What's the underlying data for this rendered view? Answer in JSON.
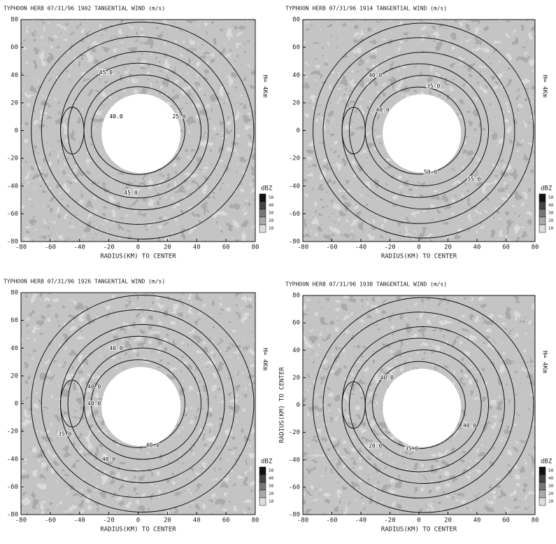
{
  "chart_data": [
    {
      "type": "radar-image",
      "title": "TYPHOON HERB 07/31/96 1902   TANGENTIAL WIND (m/s)",
      "xlabel": "RADIUS(KM) TO CENTER",
      "side_label": "H= 4Km",
      "xlim": [
        -80,
        80
      ],
      "ylim": [
        -80,
        80
      ],
      "xticks": [
        -80,
        -60,
        -40,
        -20,
        0,
        20,
        40,
        60,
        80
      ],
      "yticks": [
        -80,
        -60,
        -40,
        -20,
        0,
        20,
        40,
        60,
        80
      ],
      "colorbar": {
        "label": "dBZ",
        "ticks": [
          50,
          40,
          30,
          20,
          10
        ]
      },
      "annotations": [
        {
          "text": "45.0",
          "x": -22,
          "y": 42
        },
        {
          "text": "40.0",
          "x": -15,
          "y": 10
        },
        {
          "text": "25.0",
          "x": 28,
          "y": 10
        },
        {
          "text": "45.0",
          "x": -5,
          "y": -45
        }
      ]
    },
    {
      "type": "radar-image",
      "title": "TYPHOON HERB 07/31/96 1914   TANGENTIAL WIND (m/s)",
      "xlabel": "RADIUS(KM) TO CENTER",
      "side_label": "H= 4Km",
      "xlim": [
        -80,
        80
      ],
      "ylim": [
        -80,
        80
      ],
      "xticks": [
        -80,
        -60,
        -40,
        -20,
        0,
        20,
        40,
        60,
        80
      ],
      "yticks": [
        -80,
        -60,
        -40,
        -20,
        0,
        20,
        40,
        60,
        80
      ],
      "colorbar": {
        "label": "dBZ",
        "ticks": [
          50,
          40,
          30,
          20,
          10
        ]
      },
      "annotations": [
        {
          "text": "40.0",
          "x": -30,
          "y": 40
        },
        {
          "text": "40.0",
          "x": -25,
          "y": 15
        },
        {
          "text": "35.0",
          "x": 10,
          "y": 32
        },
        {
          "text": "50.0",
          "x": 8,
          "y": -30
        },
        {
          "text": "55.0",
          "x": 38,
          "y": -35
        }
      ]
    },
    {
      "type": "radar-image",
      "title": "TYPHOON HERB 07/31/96 1926   TANGENTIAL WIND (m/s)",
      "xlabel": "RADIUS(KM) TO CENTER",
      "side_label": "H= 4Km",
      "xlim": [
        -80,
        80
      ],
      "ylim": [
        -80,
        80
      ],
      "xticks": [
        -80,
        -60,
        -40,
        -20,
        0,
        20,
        40,
        60,
        80
      ],
      "yticks": [
        -80,
        -60,
        -40,
        -20,
        0,
        20,
        40,
        60,
        80
      ],
      "colorbar": {
        "label": "dBZ",
        "ticks": [
          50,
          40,
          30,
          20,
          10
        ]
      },
      "annotations": [
        {
          "text": "40.0",
          "x": -15,
          "y": 40
        },
        {
          "text": "40.0",
          "x": -30,
          "y": 12
        },
        {
          "text": "40.0",
          "x": -30,
          "y": 0
        },
        {
          "text": "35.0",
          "x": -50,
          "y": -22
        },
        {
          "text": "40.0",
          "x": -20,
          "y": -40
        },
        {
          "text": "40.0",
          "x": 10,
          "y": -30
        }
      ]
    },
    {
      "type": "radar-image",
      "title": "TYPHOON HERB 07/31/96 1938   TANGENTIAL WIND (m/s)",
      "xlabel": "RADIUS(KM) TO CENTER",
      "ylabel": "RADIUS(KM) TO CENTER",
      "side_label": "H= 4Km",
      "xlim": [
        -80,
        80
      ],
      "ylim": [
        -80,
        80
      ],
      "xticks": [
        -80,
        -60,
        -40,
        -20,
        0,
        20,
        40,
        60,
        80
      ],
      "yticks": [
        -80,
        -60,
        -40,
        -20,
        0,
        20,
        40,
        60,
        80
      ],
      "colorbar": {
        "label": "dBZ",
        "ticks": [
          50,
          40,
          30,
          20,
          10
        ]
      },
      "annotations": [
        {
          "text": "40.0",
          "x": -22,
          "y": 20
        },
        {
          "text": "40.0",
          "x": 35,
          "y": -15
        },
        {
          "text": "20.0",
          "x": -30,
          "y": -30
        },
        {
          "text": "35.0",
          "x": -5,
          "y": -32
        }
      ]
    }
  ]
}
